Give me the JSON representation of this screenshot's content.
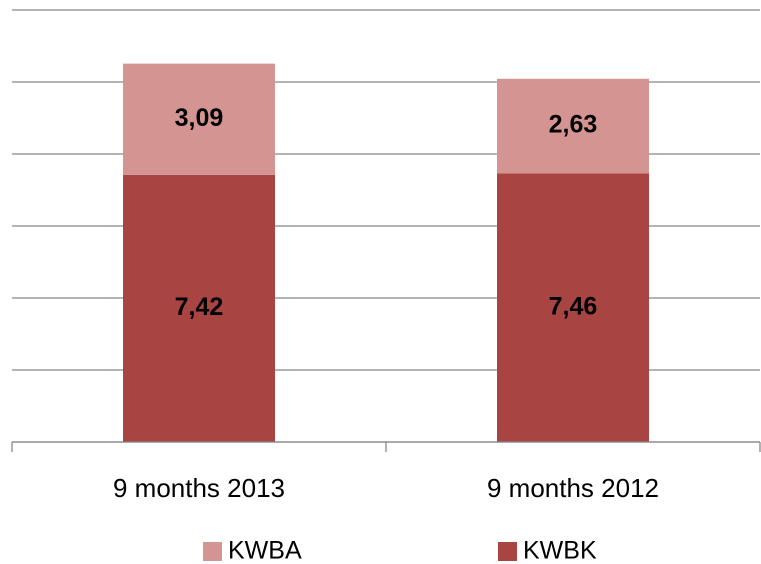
{
  "chart_data": {
    "type": "bar",
    "stacked": true,
    "categories": [
      "9 months 2013",
      "9 months 2012"
    ],
    "series": [
      {
        "name": "KWBK",
        "color": "#a84442",
        "values": [
          7.42,
          7.46
        ],
        "value_labels": [
          "7,42",
          "7,46"
        ]
      },
      {
        "name": "KWBA",
        "color": "#d49592",
        "values": [
          3.09,
          2.63
        ],
        "value_labels": [
          "3,09",
          "2,63"
        ]
      }
    ],
    "ylim": [
      0,
      12
    ],
    "yticks": [
      0,
      2,
      4,
      6,
      8,
      10,
      12
    ],
    "grid": true,
    "legend": "bottom"
  }
}
